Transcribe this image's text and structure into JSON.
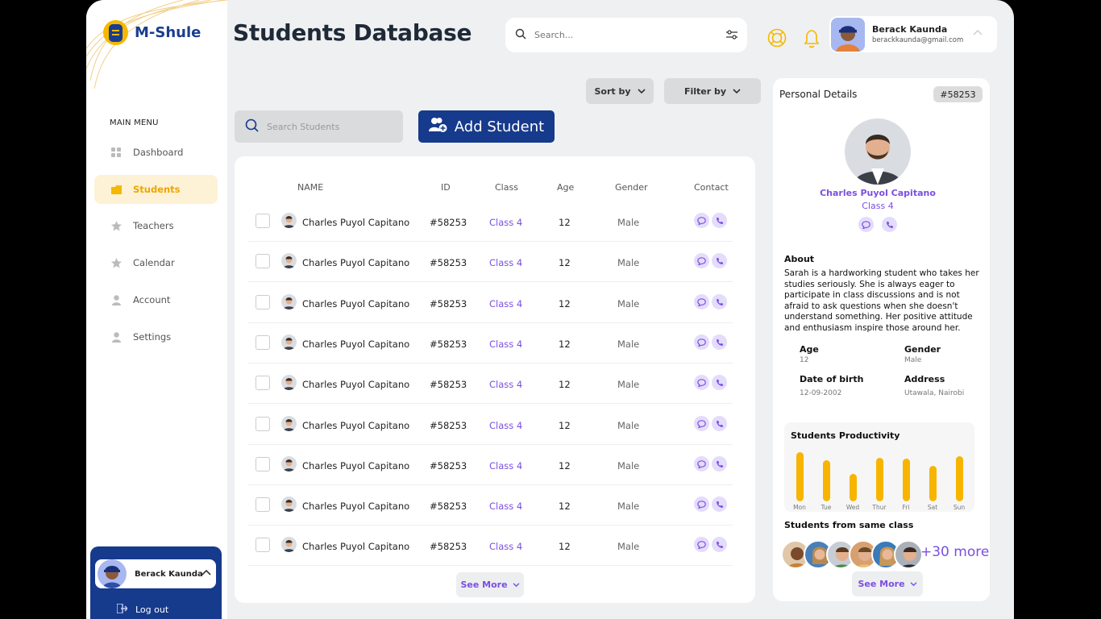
{
  "brand": {
    "name": "M-Shule"
  },
  "sidebar": {
    "menu_title": "MAIN MENU",
    "items": [
      {
        "label": "Dashboard",
        "icon": "grid-icon"
      },
      {
        "label": "Students",
        "icon": "folder-icon"
      },
      {
        "label": "Teachers",
        "icon": "star-icon"
      },
      {
        "label": "Calendar",
        "icon": "star-icon"
      },
      {
        "label": "Account",
        "icon": "user-icon"
      },
      {
        "label": "Settings",
        "icon": "user-icon"
      }
    ],
    "active_index": 1,
    "user_name": "Berack Kaunda",
    "logout_label": "Log out"
  },
  "header": {
    "title": "Students Database",
    "search_placeholder": "Search...",
    "user_name": "Berack Kaunda",
    "user_email": "berackkaunda@gmail.com"
  },
  "toolbar": {
    "sort_label": "Sort by",
    "filter_label": "Filter by",
    "student_search_placeholder": "Search Students",
    "add_label": "Add Student"
  },
  "table": {
    "columns": [
      "NAME",
      "ID",
      "Class",
      "Age",
      "Gender",
      "Contact"
    ],
    "rows": [
      {
        "name": "Charles Puyol Capitano",
        "id": "#58253",
        "class": "Class 4",
        "age": "12",
        "gender": "Male"
      },
      {
        "name": "Charles Puyol Capitano",
        "id": "#58253",
        "class": "Class 4",
        "age": "12",
        "gender": "Male"
      },
      {
        "name": "Charles Puyol Capitano",
        "id": "#58253",
        "class": "Class 4",
        "age": "12",
        "gender": "Male"
      },
      {
        "name": "Charles Puyol Capitano",
        "id": "#58253",
        "class": "Class 4",
        "age": "12",
        "gender": "Male"
      },
      {
        "name": "Charles Puyol Capitano",
        "id": "#58253",
        "class": "Class 4",
        "age": "12",
        "gender": "Male"
      },
      {
        "name": "Charles Puyol Capitano",
        "id": "#58253",
        "class": "Class 4",
        "age": "12",
        "gender": "Male"
      },
      {
        "name": "Charles Puyol Capitano",
        "id": "#58253",
        "class": "Class 4",
        "age": "12",
        "gender": "Male"
      },
      {
        "name": "Charles Puyol Capitano",
        "id": "#58253",
        "class": "Class 4",
        "age": "12",
        "gender": "Male"
      },
      {
        "name": "Charles Puyol Capitano",
        "id": "#58253",
        "class": "Class 4",
        "age": "12",
        "gender": "Male"
      }
    ],
    "see_more_label": "See More"
  },
  "details": {
    "title": "Personal Details",
    "badge": "#58253",
    "name": "Charles Puyol Capitano",
    "class": "Class 4",
    "about_title": "About",
    "about_text": "Sarah is a hardworking student who takes her studies seriously. She is always eager to participate in class discussions and is not afraid to ask questions when she doesn't understand something. Her positive attitude and enthusiasm inspire those around her.",
    "fields": [
      {
        "label": "Age",
        "value": "12"
      },
      {
        "label": "Gender",
        "value": "Male"
      },
      {
        "label": "Date of birth",
        "value": "12-09-2002"
      },
      {
        "label": "Address",
        "value": "Utawala, Nairobi"
      }
    ],
    "productivity_title": "Students Productivity",
    "same_class_title": "Students from same class",
    "more_label": "+30 more",
    "see_more_label": "See More"
  },
  "chart_data": {
    "type": "bar",
    "categories": [
      "Mon",
      "Tue",
      "Wed",
      "Thur",
      "Fri",
      "Sat",
      "Sun"
    ],
    "values": [
      0.9,
      0.75,
      0.5,
      0.8,
      0.78,
      0.65,
      0.82
    ]
  },
  "colors": {
    "brand_blue": "#163a8c",
    "accent_yellow": "#f7b500",
    "accent_purple": "#7b4fe0"
  }
}
